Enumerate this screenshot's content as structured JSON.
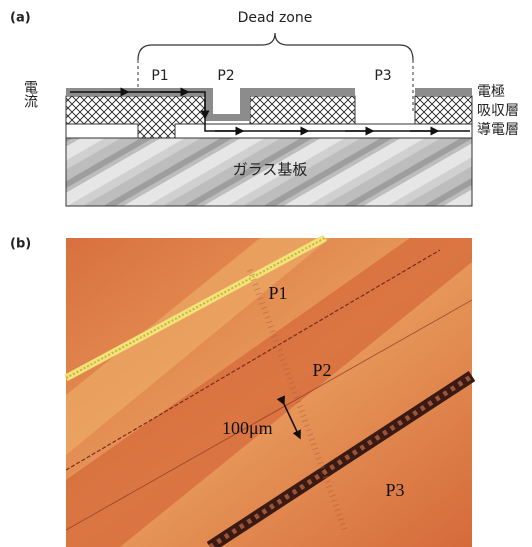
{
  "panel_a": {
    "label": "(a)",
    "dead_zone": "Dead zone",
    "scribes": [
      "P1",
      "P2",
      "P3"
    ],
    "current": "電流",
    "layers": [
      "電極",
      "吸収層",
      "導電層"
    ],
    "substrate": "ガラス基板"
  },
  "panel_b": {
    "label": "(b)",
    "regions": [
      "P1",
      "P2",
      "P3"
    ],
    "scale": "100μm"
  }
}
